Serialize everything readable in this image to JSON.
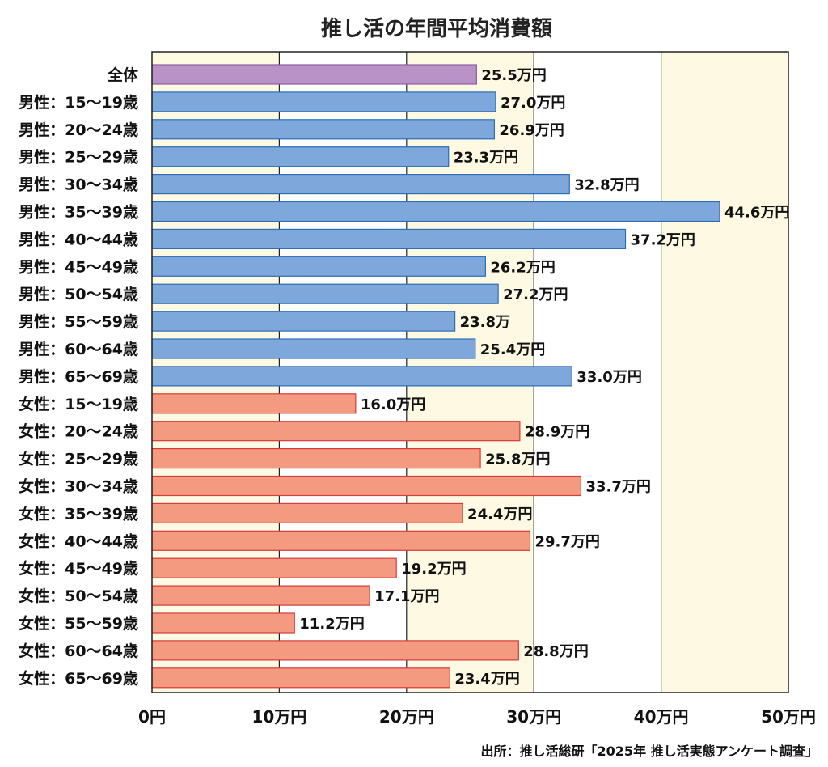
{
  "chart_data": {
    "type": "bar",
    "orientation": "horizontal",
    "title": "推し活の年間平均消費額",
    "source": "出所：推し活総研「2025年 推し活実態アンケート調査」",
    "xlim": [
      0,
      50
    ],
    "x_ticks": [
      {
        "value": 0,
        "label": "0円"
      },
      {
        "value": 10,
        "label": "10万円"
      },
      {
        "value": 20,
        "label": "20万円"
      },
      {
        "value": 30,
        "label": "30万円"
      },
      {
        "value": 40,
        "label": "40万円"
      },
      {
        "value": 50,
        "label": "50万円"
      }
    ],
    "colors": {
      "all": "#b992c8",
      "male": "#7ea8dc",
      "female": "#f49a80",
      "male_border": "#2e6db4",
      "female_border": "#d63a3a",
      "all_border": "#8a5fa0",
      "band": "#fdf9e3"
    },
    "bars": [
      {
        "category": "全体",
        "group": "all",
        "value": 25.5,
        "label": "25.5万円"
      },
      {
        "category": "男性：15〜19歳",
        "group": "male",
        "value": 27.0,
        "label": "27.0万円"
      },
      {
        "category": "男性：20〜24歳",
        "group": "male",
        "value": 26.9,
        "label": "26.9万円"
      },
      {
        "category": "男性：25〜29歳",
        "group": "male",
        "value": 23.3,
        "label": "23.3万円"
      },
      {
        "category": "男性：30〜34歳",
        "group": "male",
        "value": 32.8,
        "label": "32.8万円"
      },
      {
        "category": "男性：35〜39歳",
        "group": "male",
        "value": 44.6,
        "label": "44.6万円"
      },
      {
        "category": "男性：40〜44歳",
        "group": "male",
        "value": 37.2,
        "label": "37.2万円"
      },
      {
        "category": "男性：45〜49歳",
        "group": "male",
        "value": 26.2,
        "label": "26.2万円"
      },
      {
        "category": "男性：50〜54歳",
        "group": "male",
        "value": 27.2,
        "label": "27.2万円"
      },
      {
        "category": "男性：55〜59歳",
        "group": "male",
        "value": 23.8,
        "label": "23.8万"
      },
      {
        "category": "男性：60〜64歳",
        "group": "male",
        "value": 25.4,
        "label": "25.4万円"
      },
      {
        "category": "男性：65〜69歳",
        "group": "male",
        "value": 33.0,
        "label": "33.0万円"
      },
      {
        "category": "女性：15〜19歳",
        "group": "female",
        "value": 16.0,
        "label": "16.0万円"
      },
      {
        "category": "女性：20〜24歳",
        "group": "female",
        "value": 28.9,
        "label": "28.9万円"
      },
      {
        "category": "女性：25〜29歳",
        "group": "female",
        "value": 25.8,
        "label": "25.8万円"
      },
      {
        "category": "女性：30〜34歳",
        "group": "female",
        "value": 33.7,
        "label": "33.7万円"
      },
      {
        "category": "女性：35〜39歳",
        "group": "female",
        "value": 24.4,
        "label": "24.4万円"
      },
      {
        "category": "女性：40〜44歳",
        "group": "female",
        "value": 29.7,
        "label": "29.7万円"
      },
      {
        "category": "女性：45〜49歳",
        "group": "female",
        "value": 19.2,
        "label": "19.2万円"
      },
      {
        "category": "女性：50〜54歳",
        "group": "female",
        "value": 17.1,
        "label": "17.1万円"
      },
      {
        "category": "女性：55〜59歳",
        "group": "female",
        "value": 11.2,
        "label": "11.2万円"
      },
      {
        "category": "女性：60〜64歳",
        "group": "female",
        "value": 28.8,
        "label": "28.8万円"
      },
      {
        "category": "女性：65〜69歳",
        "group": "female",
        "value": 23.4,
        "label": "23.4万円"
      }
    ]
  }
}
